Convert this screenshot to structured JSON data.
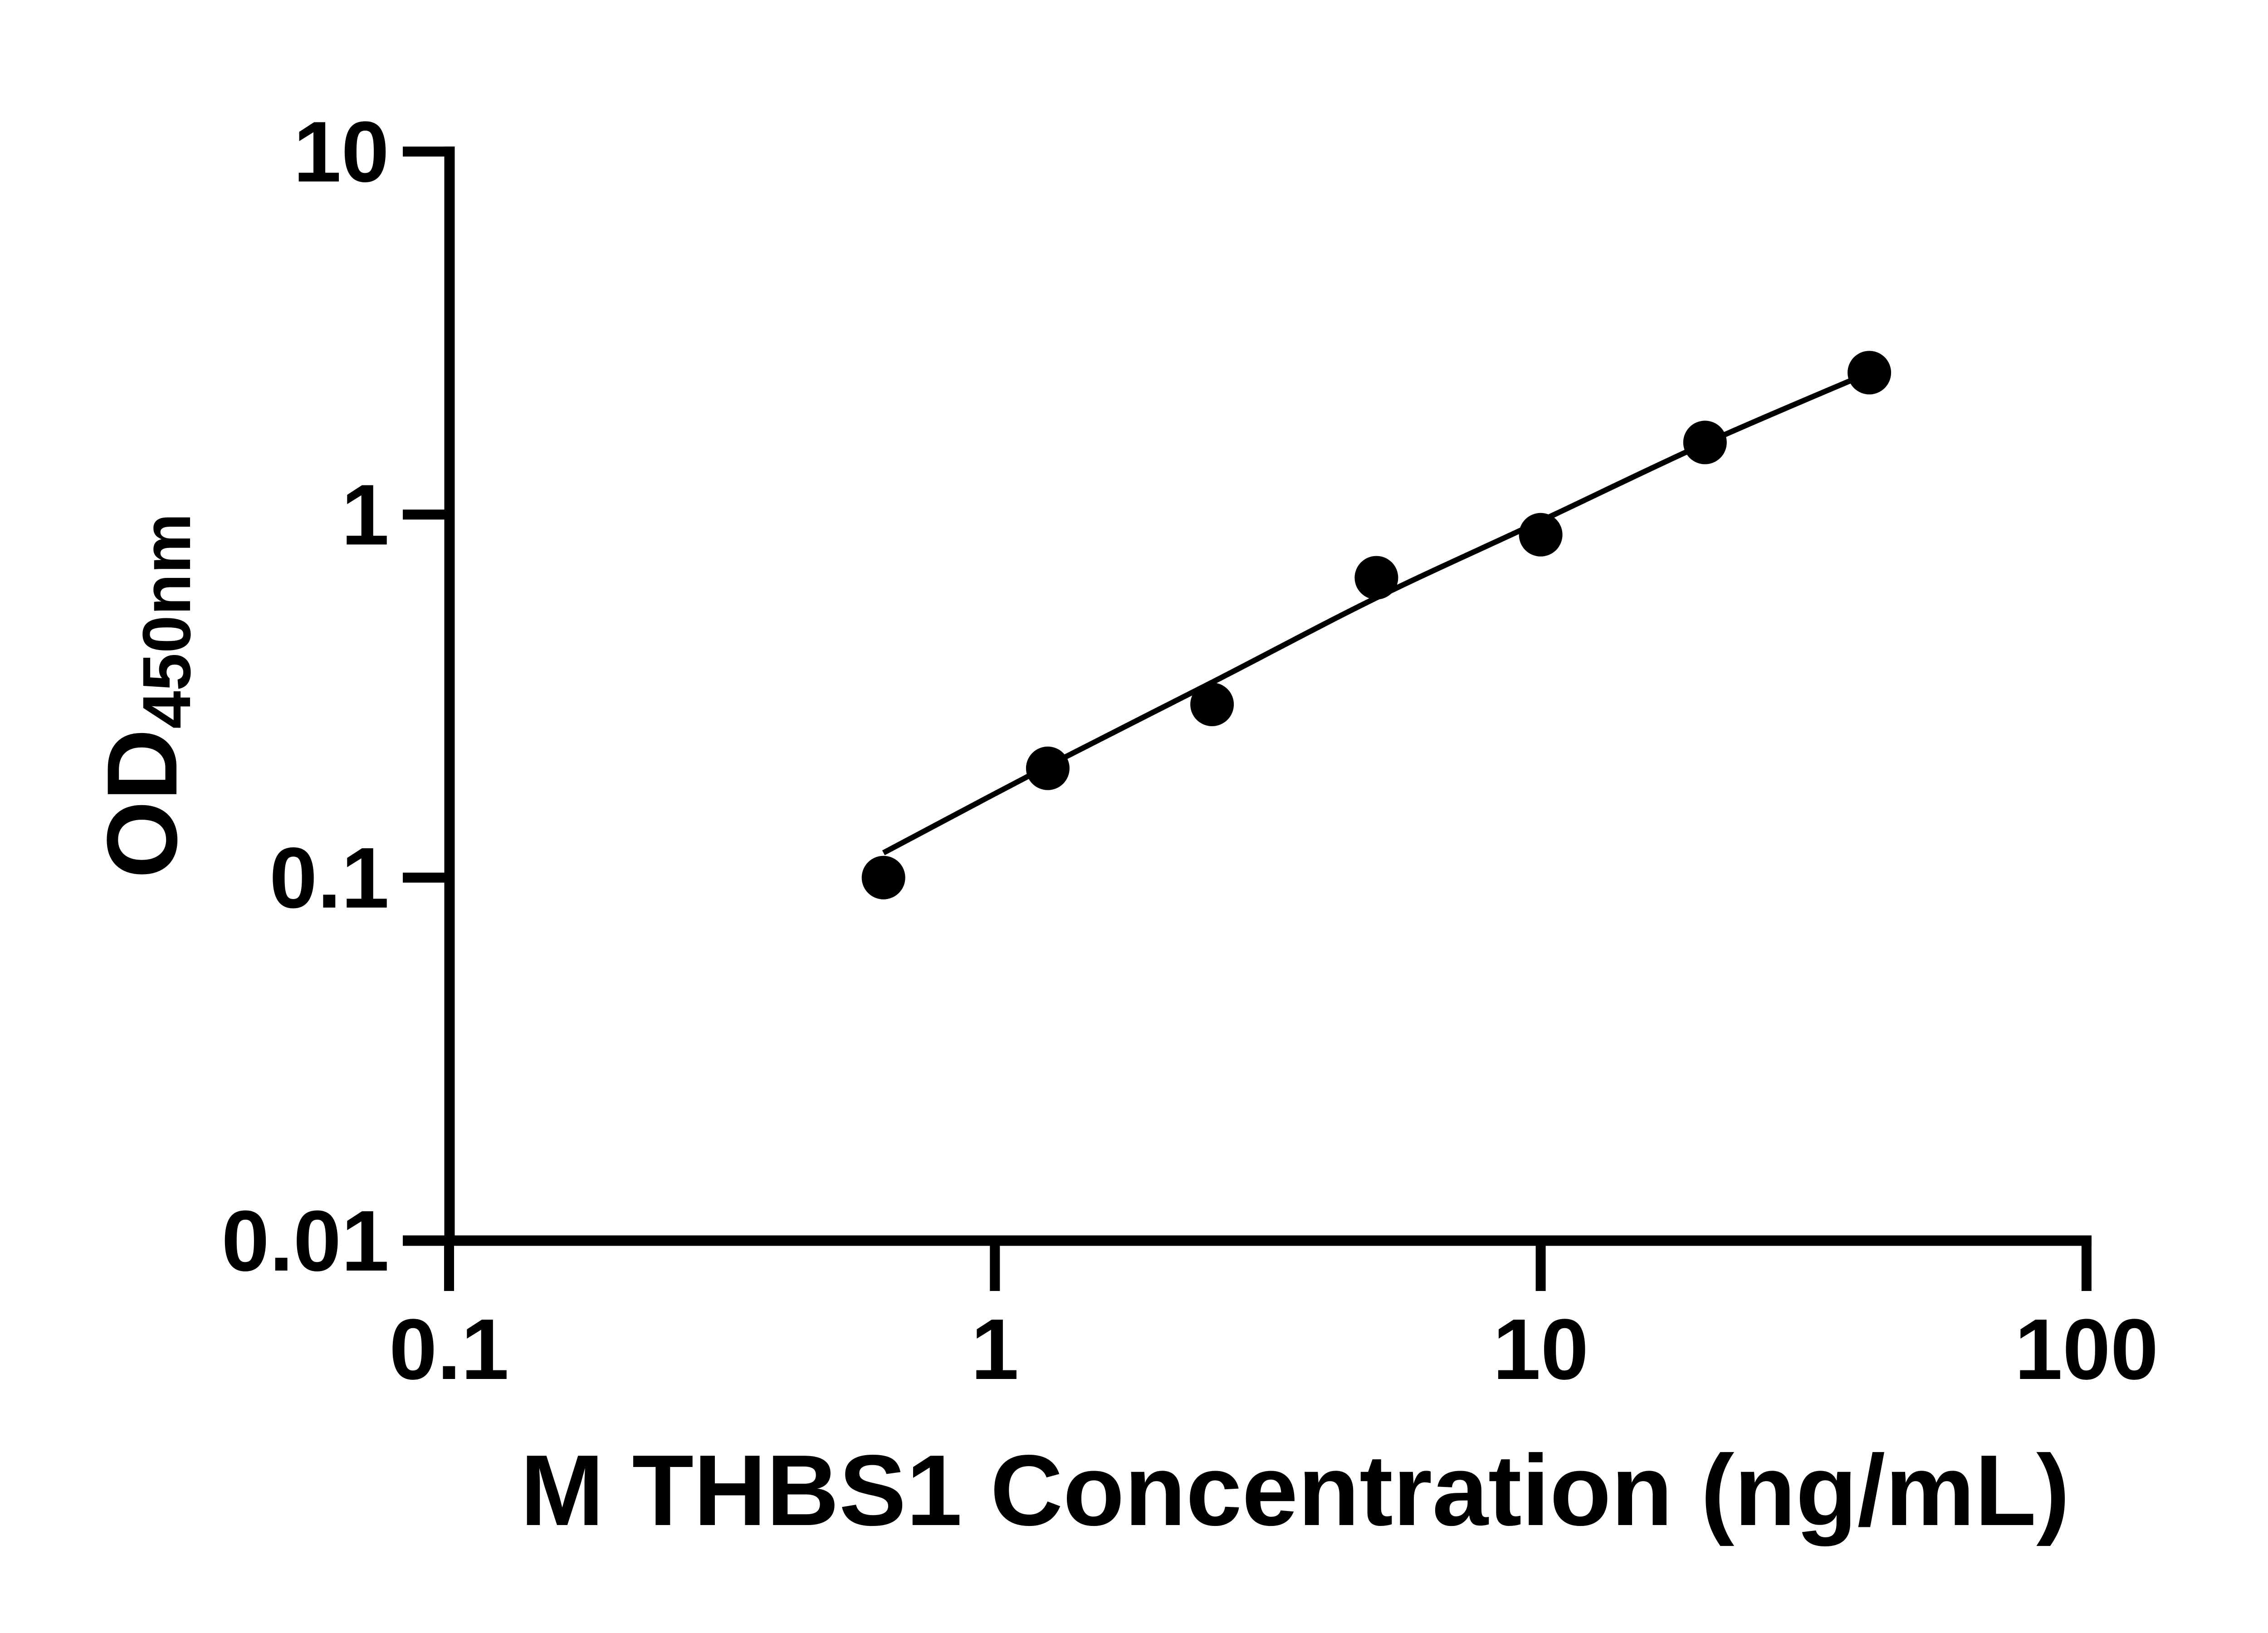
{
  "figure": {
    "kind": "elisa-standard-curve",
    "background_color": "#ffffff",
    "foreground_color": "#000000"
  },
  "chart_data": {
    "type": "scatter",
    "title": "",
    "xlabel": "M THBS1 Concentration (ng/mL)",
    "ylabel": "OD",
    "ylabel_subscript": "450nm",
    "x_scale": "log10",
    "y_scale": "log10",
    "xlim": [
      0.1,
      100
    ],
    "ylim": [
      0.01,
      10
    ],
    "grid": false,
    "legend_position": "none",
    "x_ticks": [
      {
        "value": 0.1,
        "label": "0.1"
      },
      {
        "value": 1,
        "label": "1"
      },
      {
        "value": 10,
        "label": "10"
      },
      {
        "value": 100,
        "label": "100"
      }
    ],
    "y_ticks": [
      {
        "value": 10,
        "label": "10"
      },
      {
        "value": 1,
        "label": "1"
      },
      {
        "value": 0.1,
        "label": "0.1"
      },
      {
        "value": 0.01,
        "label": "0.01"
      }
    ],
    "series": [
      {
        "name": "standards",
        "kind": "points",
        "marker": "filled-circle",
        "color": "#000000",
        "x": [
          0.625,
          1.25,
          2.5,
          5,
          10,
          20,
          40
        ],
        "y": [
          0.1,
          0.2,
          0.3,
          0.67,
          0.88,
          1.58,
          2.46
        ]
      },
      {
        "name": "fit-curve",
        "kind": "line",
        "color": "#000000",
        "x": [
          0.625,
          1.25,
          2.5,
          5,
          10,
          20,
          40
        ],
        "y": [
          0.117,
          0.203,
          0.345,
          0.59,
          0.96,
          1.57,
          2.46
        ]
      }
    ]
  }
}
